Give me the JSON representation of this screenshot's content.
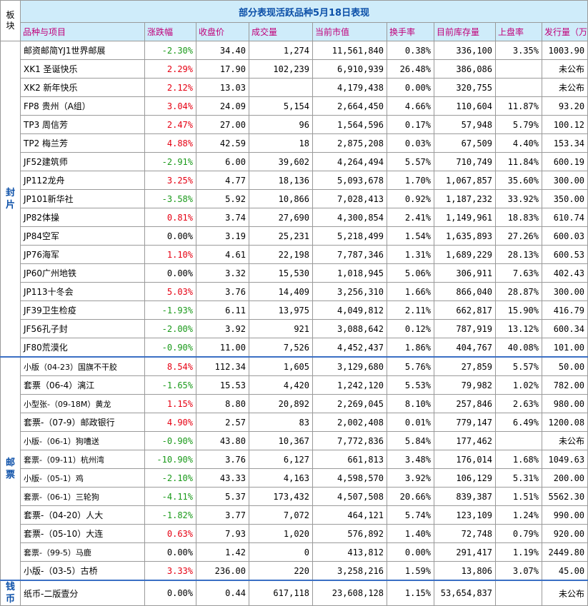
{
  "title": "部分表现活跃品种5月18日表现",
  "corner": "板\n块",
  "headers": [
    "品种与项目",
    "涨跌幅",
    "收盘价",
    "成交量",
    "当前市值",
    "换手率",
    "目前库存量",
    "上盘率",
    "发行量（万）"
  ],
  "sections": [
    {
      "label": "封\n片",
      "rows": [
        {
          "name": "邮资邮简YJ1世界邮展",
          "change": "-2.30%",
          "dir": "down",
          "close": "34.40",
          "volume": "1,274",
          "mcap": "11,561,840",
          "turnover": "0.38%",
          "stock": "336,100",
          "rate": "3.35%",
          "issue": "1003.90"
        },
        {
          "name": "XK1 圣诞快乐",
          "change": "2.29%",
          "dir": "up",
          "close": "17.90",
          "volume": "102,239",
          "mcap": "6,910,939",
          "turnover": "26.48%",
          "stock": "386,086",
          "rate": "",
          "issue": "未公布"
        },
        {
          "name": "XK2 新年快乐",
          "change": "2.12%",
          "dir": "up",
          "close": "13.03",
          "volume": "",
          "mcap": "4,179,438",
          "turnover": "0.00%",
          "stock": "320,755",
          "rate": "",
          "issue": "未公布"
        },
        {
          "name": "FP8 贵州（A组）",
          "change": "3.04%",
          "dir": "up",
          "close": "24.09",
          "volume": "5,154",
          "mcap": "2,664,450",
          "turnover": "4.66%",
          "stock": "110,604",
          "rate": "11.87%",
          "issue": "93.20"
        },
        {
          "name": "TP3 周信芳",
          "change": "2.47%",
          "dir": "up",
          "close": "27.00",
          "volume": "96",
          "mcap": "1,564,596",
          "turnover": "0.17%",
          "stock": "57,948",
          "rate": "5.79%",
          "issue": "100.12"
        },
        {
          "name": "TP2 梅兰芳",
          "change": "4.88%",
          "dir": "up",
          "close": "42.59",
          "volume": "18",
          "mcap": "2,875,208",
          "turnover": "0.03%",
          "stock": "67,509",
          "rate": "4.40%",
          "issue": "153.34"
        },
        {
          "name": "JF52建筑师",
          "change": "-2.91%",
          "dir": "down",
          "close": "6.00",
          "volume": "39,602",
          "mcap": "4,264,494",
          "turnover": "5.57%",
          "stock": "710,749",
          "rate": "11.84%",
          "issue": "600.19"
        },
        {
          "name": "JP112龙舟",
          "change": "3.25%",
          "dir": "up",
          "close": "4.77",
          "volume": "18,136",
          "mcap": "5,093,678",
          "turnover": "1.70%",
          "stock": "1,067,857",
          "rate": "35.60%",
          "issue": "300.00"
        },
        {
          "name": "JP101新华社",
          "change": "-3.58%",
          "dir": "down",
          "close": "5.92",
          "volume": "10,866",
          "mcap": "7,028,413",
          "turnover": "0.92%",
          "stock": "1,187,232",
          "rate": "33.92%",
          "issue": "350.00"
        },
        {
          "name": "JP82体操",
          "change": "0.81%",
          "dir": "up",
          "close": "3.74",
          "volume": "27,690",
          "mcap": "4,300,854",
          "turnover": "2.41%",
          "stock": "1,149,961",
          "rate": "18.83%",
          "issue": "610.74"
        },
        {
          "name": "JP84空军",
          "change": "0.00%",
          "dir": "flat",
          "close": "3.19",
          "volume": "25,231",
          "mcap": "5,218,499",
          "turnover": "1.54%",
          "stock": "1,635,893",
          "rate": "27.26%",
          "issue": "600.03"
        },
        {
          "name": "JP76海军",
          "change": "1.10%",
          "dir": "up",
          "close": "4.61",
          "volume": "22,198",
          "mcap": "7,787,346",
          "turnover": "1.31%",
          "stock": "1,689,229",
          "rate": "28.13%",
          "issue": "600.53"
        },
        {
          "name": "JP60广州地铁",
          "change": "0.00%",
          "dir": "flat",
          "close": "3.32",
          "volume": "15,530",
          "mcap": "1,018,945",
          "turnover": "5.06%",
          "stock": "306,911",
          "rate": "7.63%",
          "issue": "402.43"
        },
        {
          "name": "JP113十冬会",
          "change": "5.03%",
          "dir": "up",
          "close": "3.76",
          "volume": "14,409",
          "mcap": "3,256,310",
          "turnover": "1.66%",
          "stock": "866,040",
          "rate": "28.87%",
          "issue": "300.00"
        },
        {
          "name": "JF39卫生检疫",
          "change": "-1.93%",
          "dir": "down",
          "close": "6.11",
          "volume": "13,975",
          "mcap": "4,049,812",
          "turnover": "2.11%",
          "stock": "662,817",
          "rate": "15.90%",
          "issue": "416.79"
        },
        {
          "name": "JF56孔子封",
          "change": "-2.00%",
          "dir": "down",
          "close": "3.92",
          "volume": "921",
          "mcap": "3,088,642",
          "turnover": "0.12%",
          "stock": "787,919",
          "rate": "13.12%",
          "issue": "600.34"
        },
        {
          "name": "JF80荒漠化",
          "change": "-0.90%",
          "dir": "down",
          "close": "11.00",
          "volume": "7,526",
          "mcap": "4,452,437",
          "turnover": "1.86%",
          "stock": "404,767",
          "rate": "40.08%",
          "issue": "101.00"
        }
      ]
    },
    {
      "label": "邮\n票",
      "rows": [
        {
          "name": "小版（04-23）国旗不干胶",
          "change": "8.54%",
          "dir": "up",
          "close": "112.34",
          "volume": "1,605",
          "mcap": "3,129,680",
          "turnover": "5.76%",
          "stock": "27,859",
          "rate": "5.57%",
          "issue": "50.00",
          "small": true
        },
        {
          "name": "套票（06-4）漓江",
          "change": "-1.65%",
          "dir": "down",
          "close": "15.53",
          "volume": "4,420",
          "mcap": "1,242,120",
          "turnover": "5.53%",
          "stock": "79,982",
          "rate": "1.02%",
          "issue": "782.00"
        },
        {
          "name": "小型张-（09-18M）黄龙",
          "change": "1.15%",
          "dir": "up",
          "close": "8.80",
          "volume": "20,892",
          "mcap": "2,269,045",
          "turnover": "8.10%",
          "stock": "257,846",
          "rate": "2.63%",
          "issue": "980.00",
          "small": true
        },
        {
          "name": "套票-（07-9）邮政银行",
          "change": "4.90%",
          "dir": "up",
          "close": "2.57",
          "volume": "83",
          "mcap": "2,002,408",
          "turnover": "0.01%",
          "stock": "779,147",
          "rate": "6.49%",
          "issue": "1200.08"
        },
        {
          "name": "小版-（06-1）狗嘈送",
          "change": "-0.90%",
          "dir": "down",
          "close": "43.80",
          "volume": "10,367",
          "mcap": "7,772,836",
          "turnover": "5.84%",
          "stock": "177,462",
          "rate": "",
          "issue": "未公布",
          "small": true
        },
        {
          "name": "套票-（09-11）杭州湾",
          "change": "-10.90%",
          "dir": "down",
          "close": "3.76",
          "volume": "6,127",
          "mcap": "661,813",
          "turnover": "3.48%",
          "stock": "176,014",
          "rate": "1.68%",
          "issue": "1049.63",
          "small": true
        },
        {
          "name": "小版-（05-1）鸡",
          "change": "-2.10%",
          "dir": "down",
          "close": "43.33",
          "volume": "4,163",
          "mcap": "4,598,570",
          "turnover": "3.92%",
          "stock": "106,129",
          "rate": "5.31%",
          "issue": "200.00",
          "small": true
        },
        {
          "name": "套票-（06-1）三轮狗",
          "change": "-4.11%",
          "dir": "down",
          "close": "5.37",
          "volume": "173,432",
          "mcap": "4,507,508",
          "turnover": "20.66%",
          "stock": "839,387",
          "rate": "1.51%",
          "issue": "5562.30",
          "small": true
        },
        {
          "name": "套票-（04-20）人大",
          "change": "-1.82%",
          "dir": "down",
          "close": "3.77",
          "volume": "7,072",
          "mcap": "464,121",
          "turnover": "5.74%",
          "stock": "123,109",
          "rate": "1.24%",
          "issue": "990.00"
        },
        {
          "name": "套票-（05-10）大连",
          "change": "0.63%",
          "dir": "up",
          "close": "7.93",
          "volume": "1,020",
          "mcap": "576,892",
          "turnover": "1.40%",
          "stock": "72,748",
          "rate": "0.79%",
          "issue": "920.00"
        },
        {
          "name": "套票-（99-5）马鹿",
          "change": "0.00%",
          "dir": "flat",
          "close": "1.42",
          "volume": "0",
          "mcap": "413,812",
          "turnover": "0.00%",
          "stock": "291,417",
          "rate": "1.19%",
          "issue": "2449.80",
          "small": true
        },
        {
          "name": "小版-（03-5）古桥",
          "change": "3.33%",
          "dir": "up",
          "close": "236.00",
          "volume": "220",
          "mcap": "3,258,216",
          "turnover": "1.59%",
          "stock": "13,806",
          "rate": "3.07%",
          "issue": "45.00"
        }
      ]
    },
    {
      "label": "钱\n币",
      "rows": [
        {
          "name": "纸币-二版壹分",
          "change": "0.00%",
          "dir": "flat",
          "close": "0.44",
          "volume": "617,118",
          "mcap": "23,608,128",
          "turnover": "1.15%",
          "stock": "53,654,837",
          "rate": "",
          "issue": "未公布"
        }
      ]
    }
  ]
}
